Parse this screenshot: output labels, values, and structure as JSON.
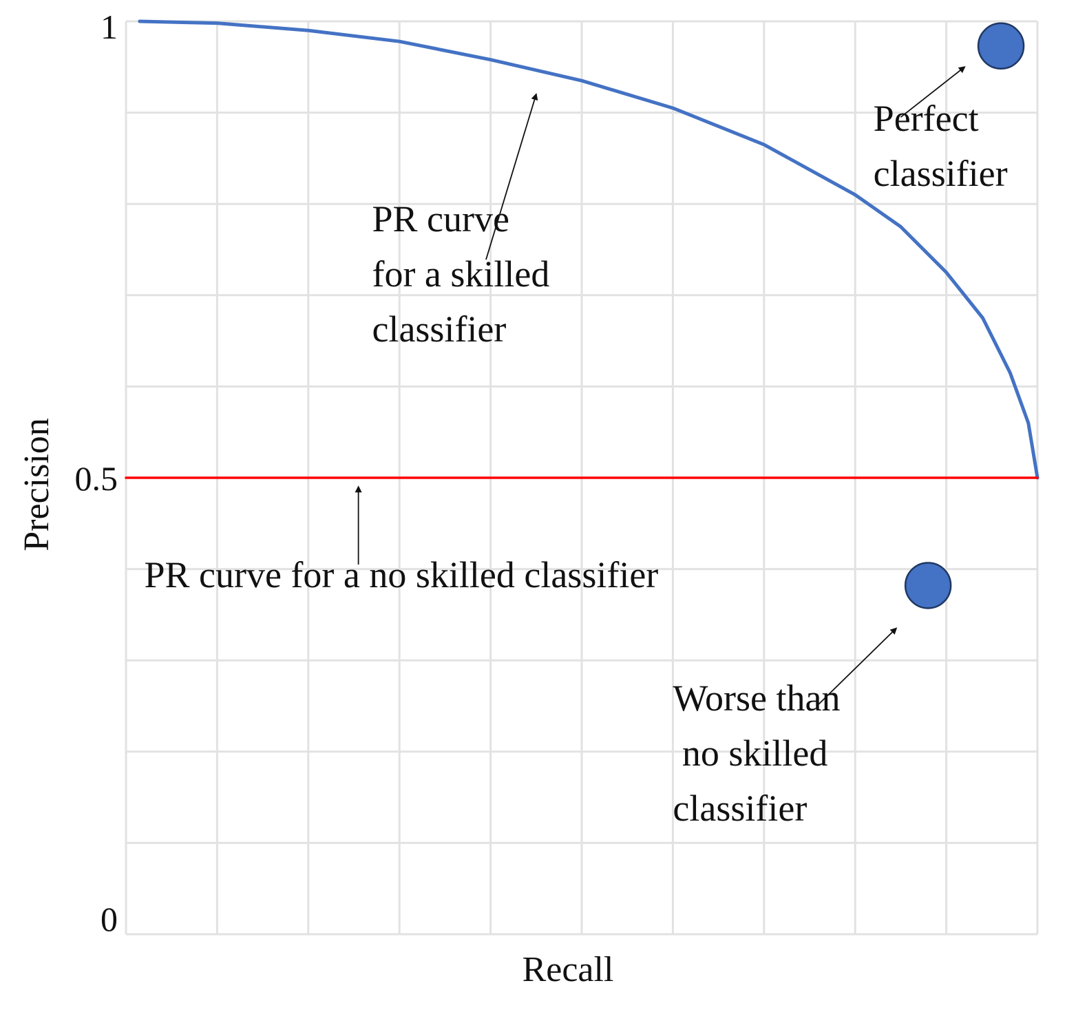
{
  "chart_data": {
    "type": "line",
    "title": "",
    "xlabel": "Recall",
    "ylabel": "Precision",
    "xlim": [
      0,
      1
    ],
    "ylim": [
      0,
      1
    ],
    "grid": true,
    "y_ticks": [
      {
        "value": 0,
        "label": "0"
      },
      {
        "value": 0.5,
        "label": "0.5"
      },
      {
        "value": 1,
        "label": "1"
      }
    ],
    "series": [
      {
        "role": "skilled",
        "color": "#4472C4",
        "x": [
          0.015,
          0.1,
          0.2,
          0.3,
          0.4,
          0.5,
          0.6,
          0.7,
          0.8,
          0.85,
          0.9,
          0.94,
          0.97,
          0.99,
          1.0
        ],
        "y": [
          1.0,
          0.998,
          0.99,
          0.978,
          0.958,
          0.935,
          0.905,
          0.865,
          0.81,
          0.775,
          0.725,
          0.675,
          0.615,
          0.56,
          0.5
        ]
      },
      {
        "role": "no-skill",
        "color": "#FF0000",
        "x": [
          0,
          1
        ],
        "y": [
          0.5,
          0.5
        ]
      }
    ],
    "points": [
      {
        "role": "perfect",
        "x": 0.96,
        "y": 0.973,
        "color": "#4472C4"
      },
      {
        "role": "worse",
        "x": 0.88,
        "y": 0.382,
        "color": "#4472C4"
      }
    ],
    "annotations": [
      {
        "role": "skilled-curve",
        "lines": [
          "PR curve",
          "for a skilled",
          "classifier"
        ],
        "x": 0.27,
        "y": 0.77,
        "arrow_from": [
          0.395,
          0.739
        ],
        "arrow_to": [
          0.45,
          0.92
        ]
      },
      {
        "role": "no-skill-line",
        "lines": [
          "PR curve for a no skilled classifier"
        ],
        "x": 0.02,
        "y": 0.38,
        "arrow_from": [
          0.255,
          0.405
        ],
        "arrow_to": [
          0.255,
          0.49
        ]
      },
      {
        "role": "perfect-point",
        "lines": [
          "Perfect",
          "classifier"
        ],
        "x": 0.82,
        "y": 0.88,
        "arrow_from": [
          0.85,
          0.895
        ],
        "arrow_to": [
          0.92,
          0.95
        ]
      },
      {
        "role": "worse-point",
        "lines": [
          "Worse than",
          " no skilled",
          "classifier"
        ],
        "x": 0.6,
        "y": 0.245,
        "arrow_from": [
          0.76,
          0.252
        ],
        "arrow_to": [
          0.845,
          0.335
        ]
      }
    ]
  }
}
